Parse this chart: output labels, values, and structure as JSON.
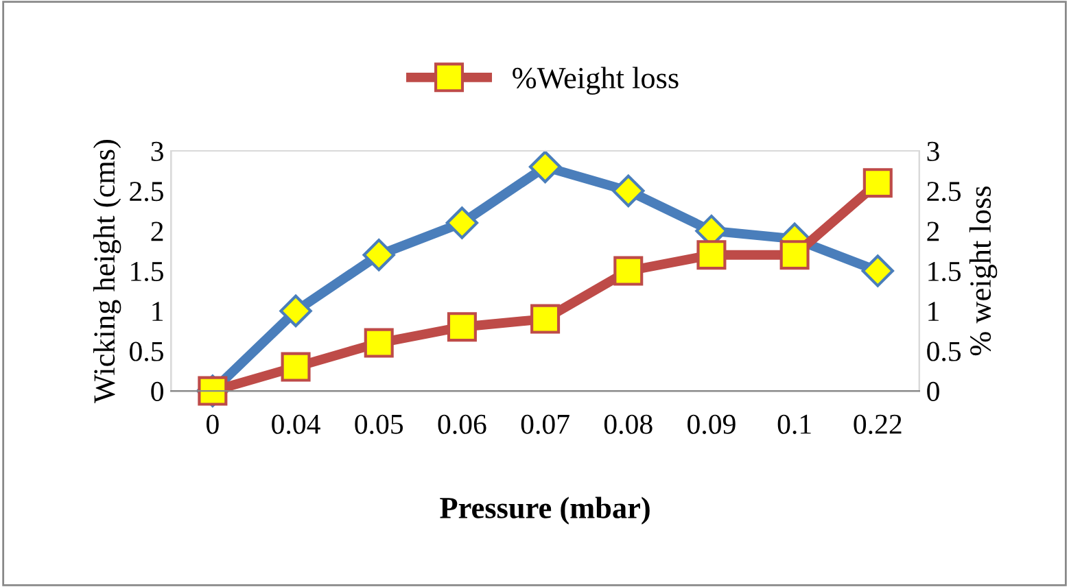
{
  "chart_data": {
    "type": "line",
    "xlabel": "Pressure (mbar)",
    "ylabel": "Wicking height (cms)",
    "y2label": "% weight loss",
    "categories": [
      "0",
      "0.04",
      "0.05",
      "0.06",
      "0.07",
      "0.08",
      "0.09",
      "0.1",
      "0.22"
    ],
    "series": [
      {
        "color": "#4a7ebb",
        "marker": "diamond",
        "values": [
          0,
          1.0,
          1.7,
          2.1,
          2.8,
          2.5,
          2.0,
          1.9,
          1.5
        ]
      },
      {
        "name": "%Weight loss",
        "color": "#be4b48",
        "marker": "square",
        "axis": "y2",
        "values": [
          0,
          0.3,
          0.6,
          0.8,
          0.9,
          1.5,
          1.7,
          1.7,
          2.6
        ]
      }
    ],
    "ylim": [
      0,
      3
    ],
    "yticks": [
      0,
      0.5,
      1,
      1.5,
      2,
      2.5,
      3
    ],
    "y2lim": [
      0,
      3
    ],
    "y2ticks": [
      0,
      0.5,
      1,
      1.5,
      2,
      2.5,
      3
    ],
    "grid": false,
    "legend": "top"
  }
}
